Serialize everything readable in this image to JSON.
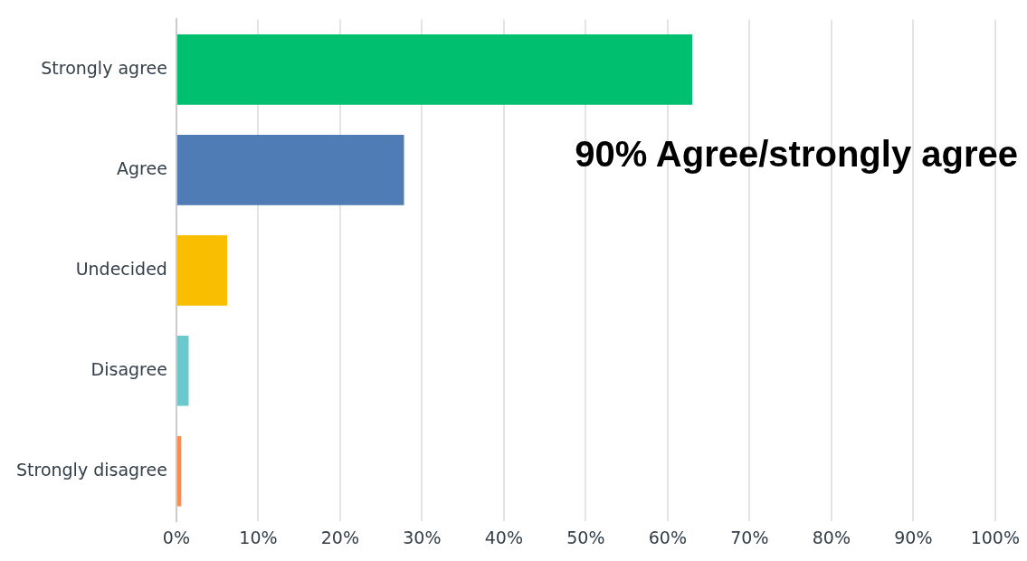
{
  "chart_data": {
    "type": "bar",
    "orientation": "horizontal",
    "categories": [
      "Strongly agree",
      "Agree",
      "Undecided",
      "Disagree",
      "Strongly disagree"
    ],
    "values": [
      63,
      27.8,
      6.2,
      1.5,
      0.6
    ],
    "colors": [
      "#00bf6f",
      "#507cb6",
      "#f9be00",
      "#6bc8cd",
      "#ff8b4f"
    ],
    "xlim": [
      0,
      100
    ],
    "xticks": [
      {
        "value": 0,
        "label": "0%"
      },
      {
        "value": 10,
        "label": "10%"
      },
      {
        "value": 20,
        "label": "20%"
      },
      {
        "value": 30,
        "label": "30%"
      },
      {
        "value": 40,
        "label": "40%"
      },
      {
        "value": 50,
        "label": "50%"
      },
      {
        "value": 60,
        "label": "60%"
      },
      {
        "value": 70,
        "label": "70%"
      },
      {
        "value": 80,
        "label": "80%"
      },
      {
        "value": 90,
        "label": "90%"
      },
      {
        "value": 100,
        "label": "100%"
      }
    ],
    "grid": "x",
    "annotations": [
      "90% Agree/strongly agree"
    ]
  }
}
